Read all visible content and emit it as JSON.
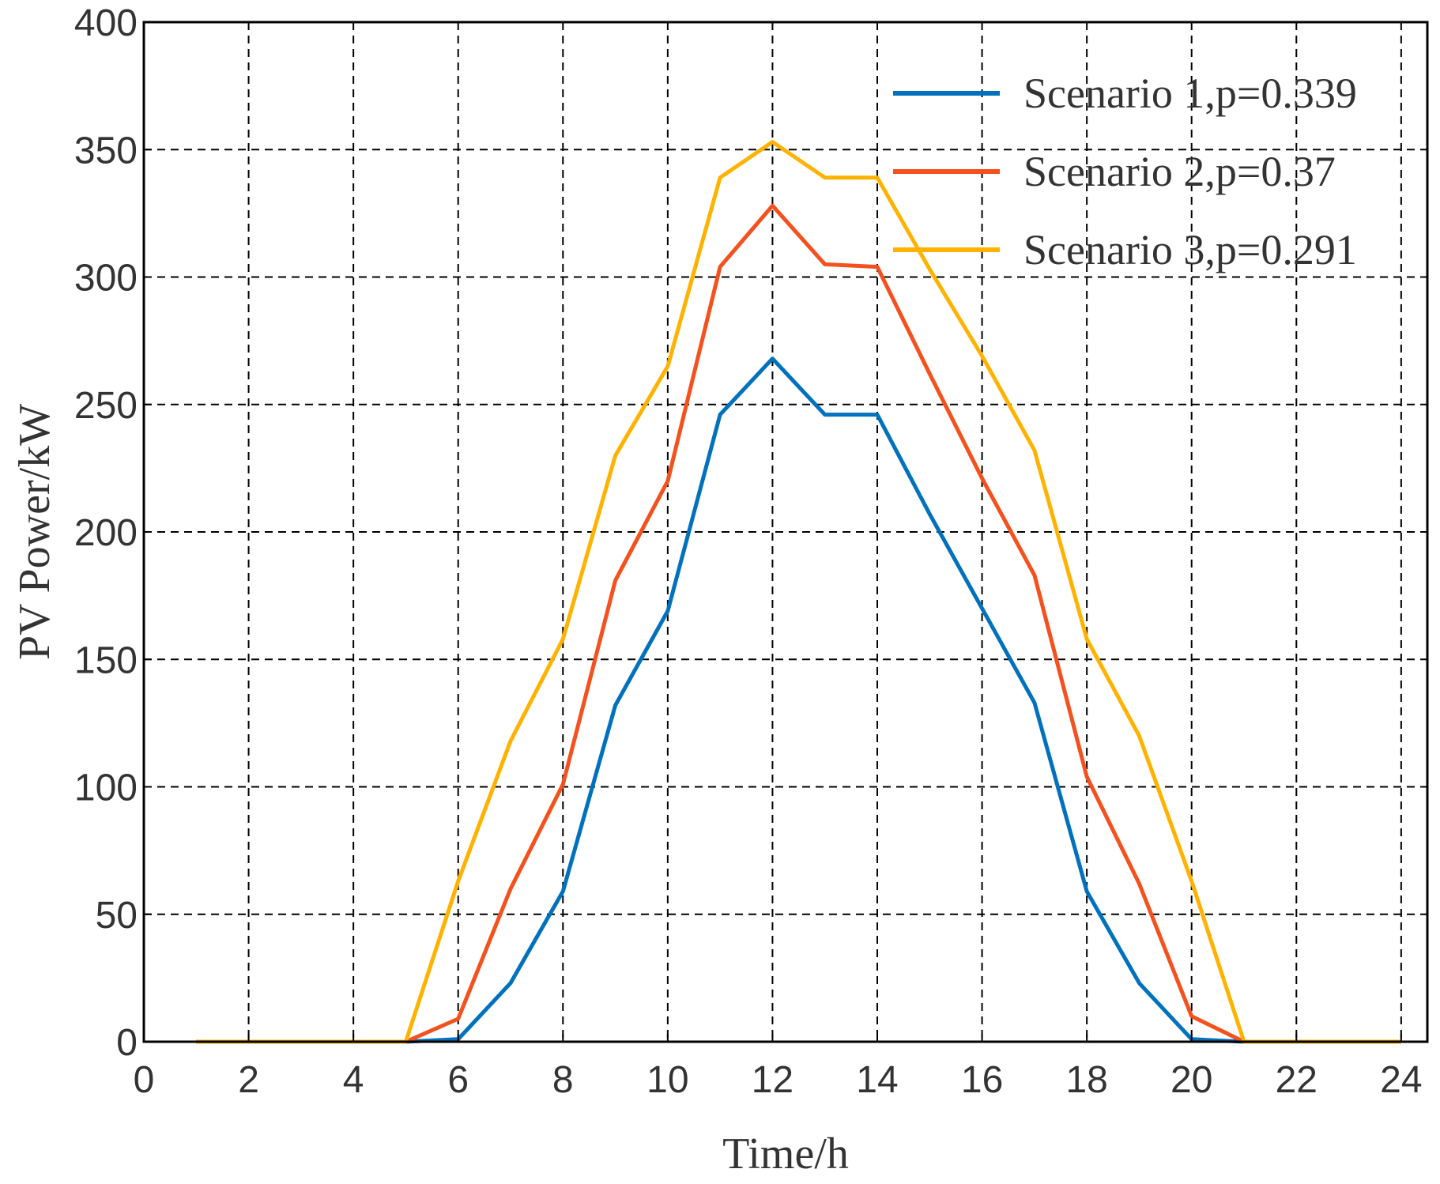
{
  "chart_data": {
    "type": "line",
    "title": "",
    "xlabel": "Time/h",
    "ylabel": "PV Power/kW",
    "xlim": [
      0,
      24.5
    ],
    "ylim": [
      0,
      400
    ],
    "xticks": [
      0,
      2,
      4,
      6,
      8,
      10,
      12,
      14,
      16,
      18,
      20,
      22,
      24
    ],
    "yticks": [
      0,
      50,
      100,
      150,
      200,
      250,
      300,
      350,
      400
    ],
    "grid": true,
    "legend_position": "top-right",
    "x": [
      1,
      2,
      3,
      4,
      5,
      6,
      7,
      8,
      9,
      10,
      11,
      12,
      13,
      14,
      15,
      16,
      17,
      18,
      19,
      20,
      21,
      22,
      23,
      24
    ],
    "series": [
      {
        "name": "Scenario 1,p=0.339",
        "color": "#0072BD",
        "values": [
          0,
          0,
          0,
          0,
          0,
          1,
          23,
          59,
          132,
          169,
          246,
          268,
          246,
          246,
          207,
          170,
          133,
          59,
          23,
          1,
          0,
          0,
          0,
          0
        ]
      },
      {
        "name": "Scenario 2,p=0.37",
        "color": "#F4511E",
        "values": [
          0,
          0,
          0,
          0,
          0,
          9,
          60,
          101,
          181,
          220,
          304,
          328,
          305,
          304,
          262,
          221,
          183,
          104,
          62,
          10,
          0,
          0,
          0,
          0
        ]
      },
      {
        "name": "Scenario 3,p=0.291",
        "color": "#FFB300",
        "values": [
          0,
          0,
          0,
          0,
          0,
          63,
          118,
          158,
          230,
          265,
          339,
          353,
          339,
          339,
          303,
          269,
          232,
          158,
          120,
          63,
          0,
          0,
          0,
          0
        ]
      }
    ]
  }
}
